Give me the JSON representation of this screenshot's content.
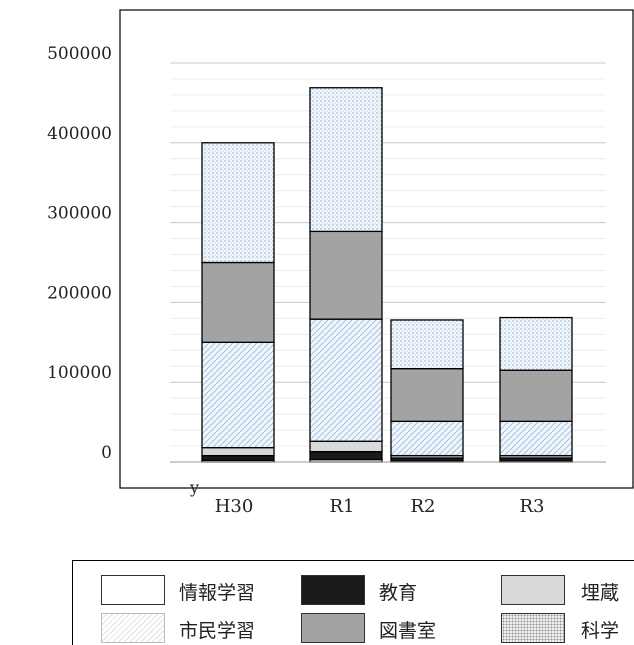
{
  "chart_data": {
    "type": "bar",
    "stacked": true,
    "categories": [
      "H30",
      "R1",
      "R2",
      "R3"
    ],
    "yticks": [
      0,
      100000,
      200000,
      300000,
      400000,
      500000
    ],
    "ylim": [
      -15000,
      530000
    ],
    "grid": true,
    "legend_position": "bottom",
    "series": [
      {
        "name": "情報学習",
        "values": [
          2000,
          3000,
          1000,
          1000
        ],
        "fill": "#ffffff",
        "pattern": "none"
      },
      {
        "name": "教育",
        "values": [
          6000,
          10000,
          4000,
          4000
        ],
        "fill": "#1a1a1a",
        "pattern": "none"
      },
      {
        "name": "埋蔵",
        "values": [
          10000,
          13000,
          3000,
          3000
        ],
        "fill": "#d9d9d9",
        "pattern": "none"
      },
      {
        "name": "市民学習",
        "values": [
          132000,
          153000,
          43000,
          43000
        ],
        "fill": "#eef4fb",
        "pattern": "diagonal",
        "pattern_color": "#9ab8d8"
      },
      {
        "name": "図書室",
        "values": [
          100000,
          110000,
          66000,
          64000
        ],
        "fill": "#a3a3a3",
        "pattern": "none"
      },
      {
        "name": "科学",
        "values": [
          150000,
          180000,
          61000,
          66000
        ],
        "fill": "#f3f7fc",
        "pattern": "dots",
        "pattern_color": "#7fa6cf"
      }
    ]
  },
  "stray_mark": "y"
}
